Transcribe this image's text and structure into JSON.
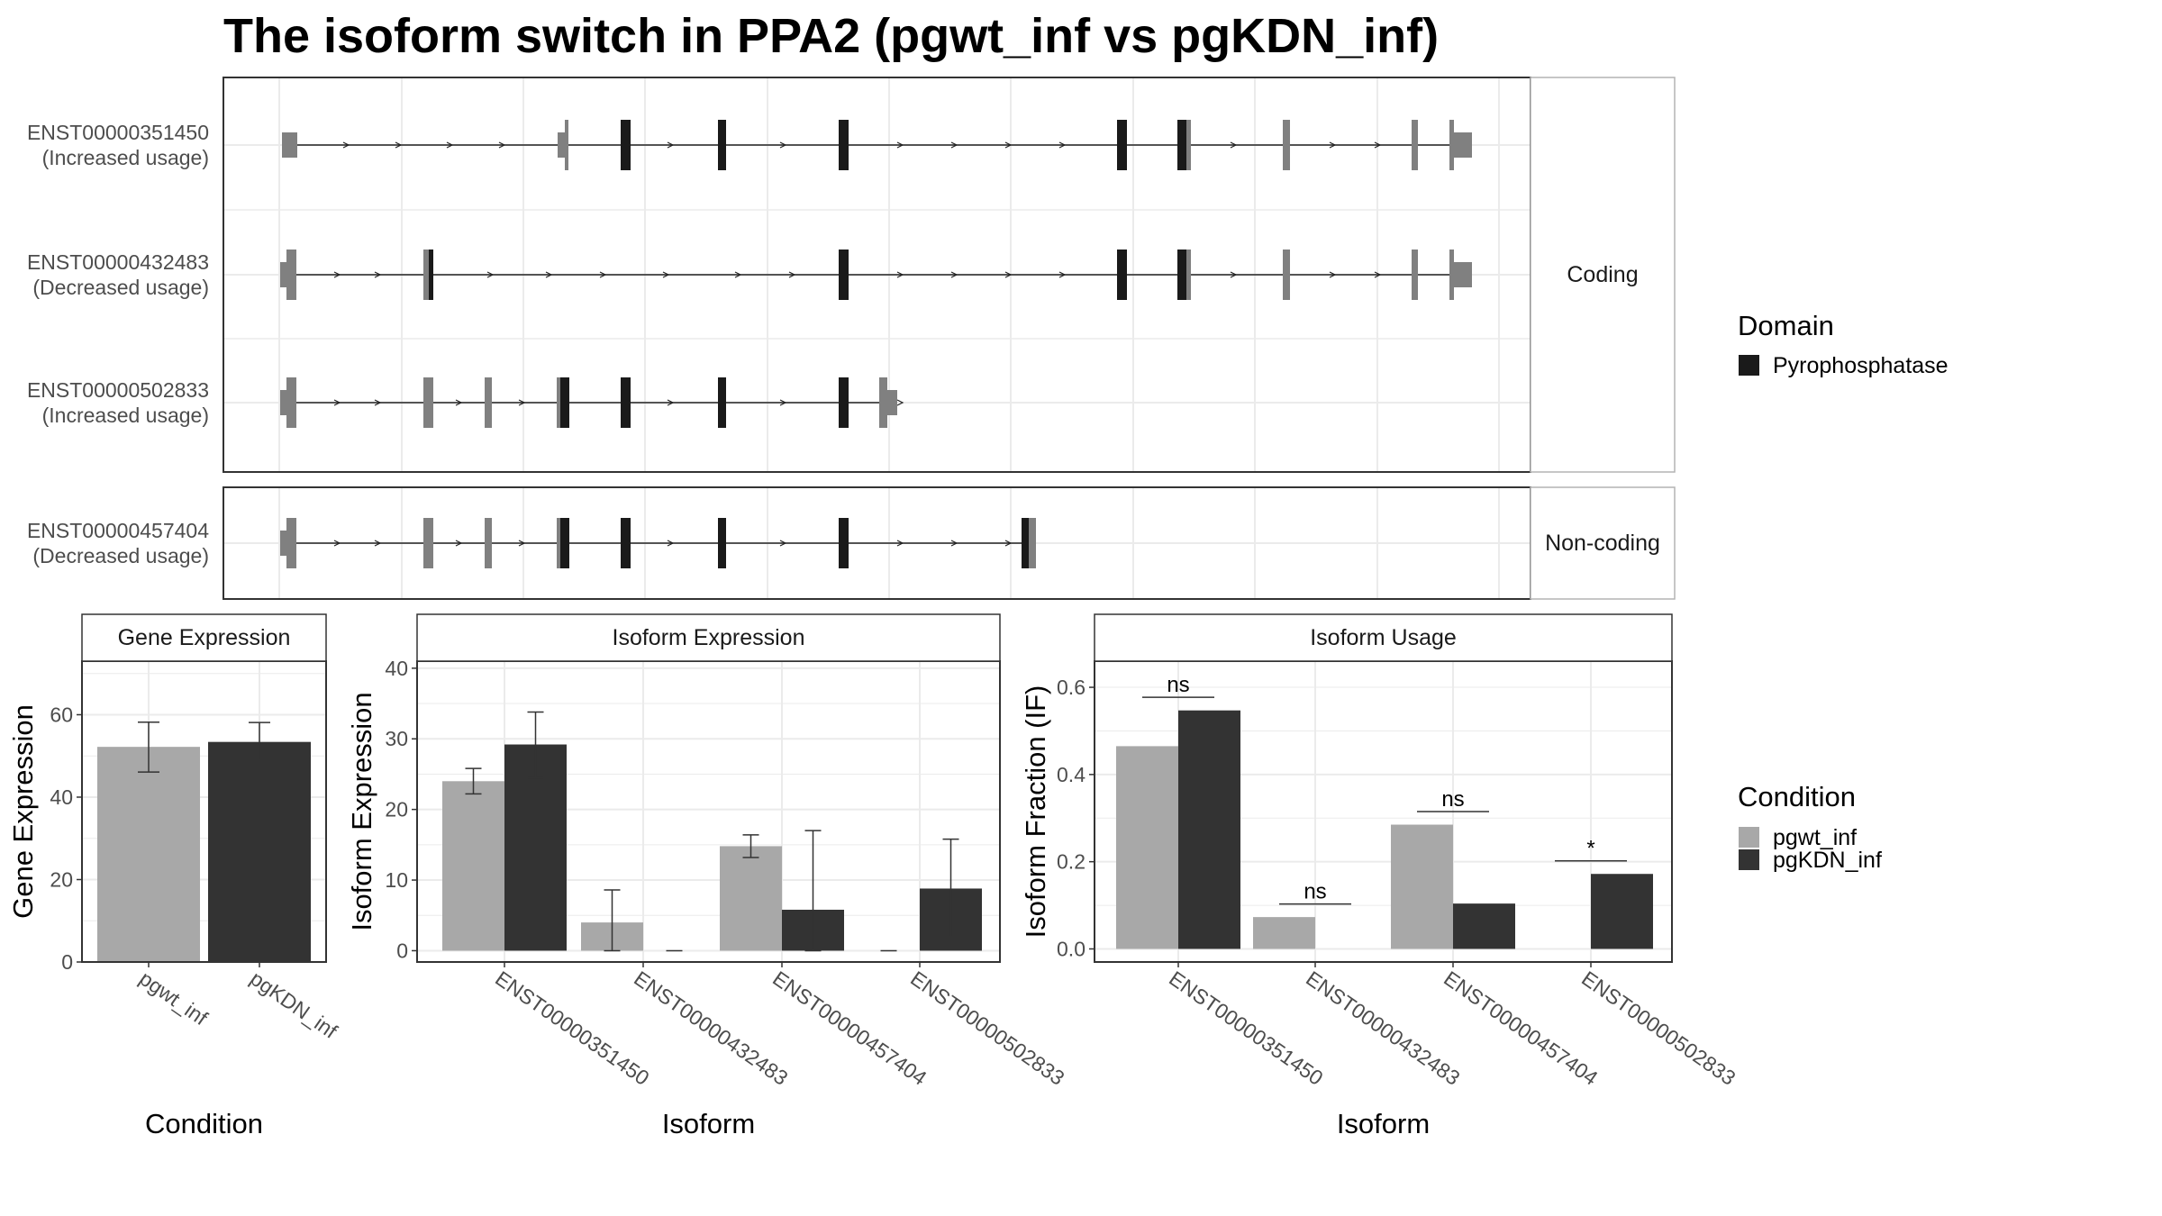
{
  "title": "The isoform switch in PPA2 (pgwt_inf vs pgKDN_inf)",
  "colors": {
    "pgwt": "#a8a8a8",
    "pgKDN": "#333333",
    "domain": "#1a1a1a",
    "exon": "#808080",
    "grid": "#ebebeb",
    "border": "#333333"
  },
  "chart_data": [
    {
      "type": "gene-structure",
      "facets": [
        "Coding",
        "Non-coding"
      ],
      "legend": {
        "title": "Domain",
        "items": [
          "Pyrophosphatase"
        ]
      },
      "transcripts": [
        {
          "id": "ENST00000351450",
          "usage": "(Increased usage)",
          "facet": "Coding"
        },
        {
          "id": "ENST00000432483",
          "usage": "(Decreased usage)",
          "facet": "Coding"
        },
        {
          "id": "ENST00000502833",
          "usage": "(Increased usage)",
          "facet": "Coding"
        },
        {
          "id": "ENST00000457404",
          "usage": "(Decreased usage)",
          "facet": "Non-coding"
        }
      ]
    },
    {
      "type": "bar",
      "strip": "Gene Expression",
      "xlabel": "Condition",
      "ylabel": "Gene Expression",
      "categories": [
        "pgwt_inf",
        "pgKDN_inf"
      ],
      "values": [
        52.2,
        53.4
      ],
      "errors": [
        [
          46.1,
          58.2
        ],
        [
          49.0,
          58.1
        ]
      ],
      "ylim": [
        0,
        73
      ],
      "yticks": [
        0,
        20,
        40,
        60
      ]
    },
    {
      "type": "bar",
      "strip": "Isoform Expression",
      "xlabel": "Isoform",
      "ylabel": "Isoform Expression",
      "categories": [
        "ENST00000351450",
        "ENST00000432483",
        "ENST00000457404",
        "ENST00000502833"
      ],
      "series": [
        {
          "name": "pgwt_inf",
          "values": [
            24.0,
            4.0,
            14.8,
            0.0
          ],
          "errors": [
            [
              22.2,
              25.8
            ],
            [
              0.0,
              8.6
            ],
            [
              13.2,
              16.4
            ],
            [
              0.0,
              0.0
            ]
          ]
        },
        {
          "name": "pgKDN_inf",
          "values": [
            29.2,
            0.0,
            5.8,
            8.8
          ],
          "errors": [
            [
              24.5,
              33.8
            ],
            [
              0.0,
              0.0
            ],
            [
              0.0,
              17.0
            ],
            [
              2.0,
              15.8
            ]
          ]
        }
      ],
      "ylim": [
        -1.6,
        41
      ],
      "yticks": [
        0,
        10,
        20,
        30,
        40
      ]
    },
    {
      "type": "bar",
      "strip": "Isoform Usage",
      "xlabel": "Isoform",
      "ylabel": "Isoform Fraction (IF)",
      "categories": [
        "ENST00000351450",
        "ENST00000432483",
        "ENST00000457404",
        "ENST00000502833"
      ],
      "series": [
        {
          "name": "pgwt_inf",
          "values": [
            0.465,
            0.073,
            0.285,
            0.0
          ]
        },
        {
          "name": "pgKDN_inf",
          "values": [
            0.547,
            0.0,
            0.104,
            0.172
          ]
        }
      ],
      "significance": [
        "ns",
        "ns",
        "ns",
        "*"
      ],
      "ylim": [
        -0.03,
        0.66
      ],
      "yticks": [
        "0.0",
        "0.2",
        "0.4",
        "0.6"
      ]
    }
  ],
  "condition_legend": {
    "title": "Condition",
    "items": [
      "pgwt_inf",
      "pgKDN_inf"
    ]
  }
}
